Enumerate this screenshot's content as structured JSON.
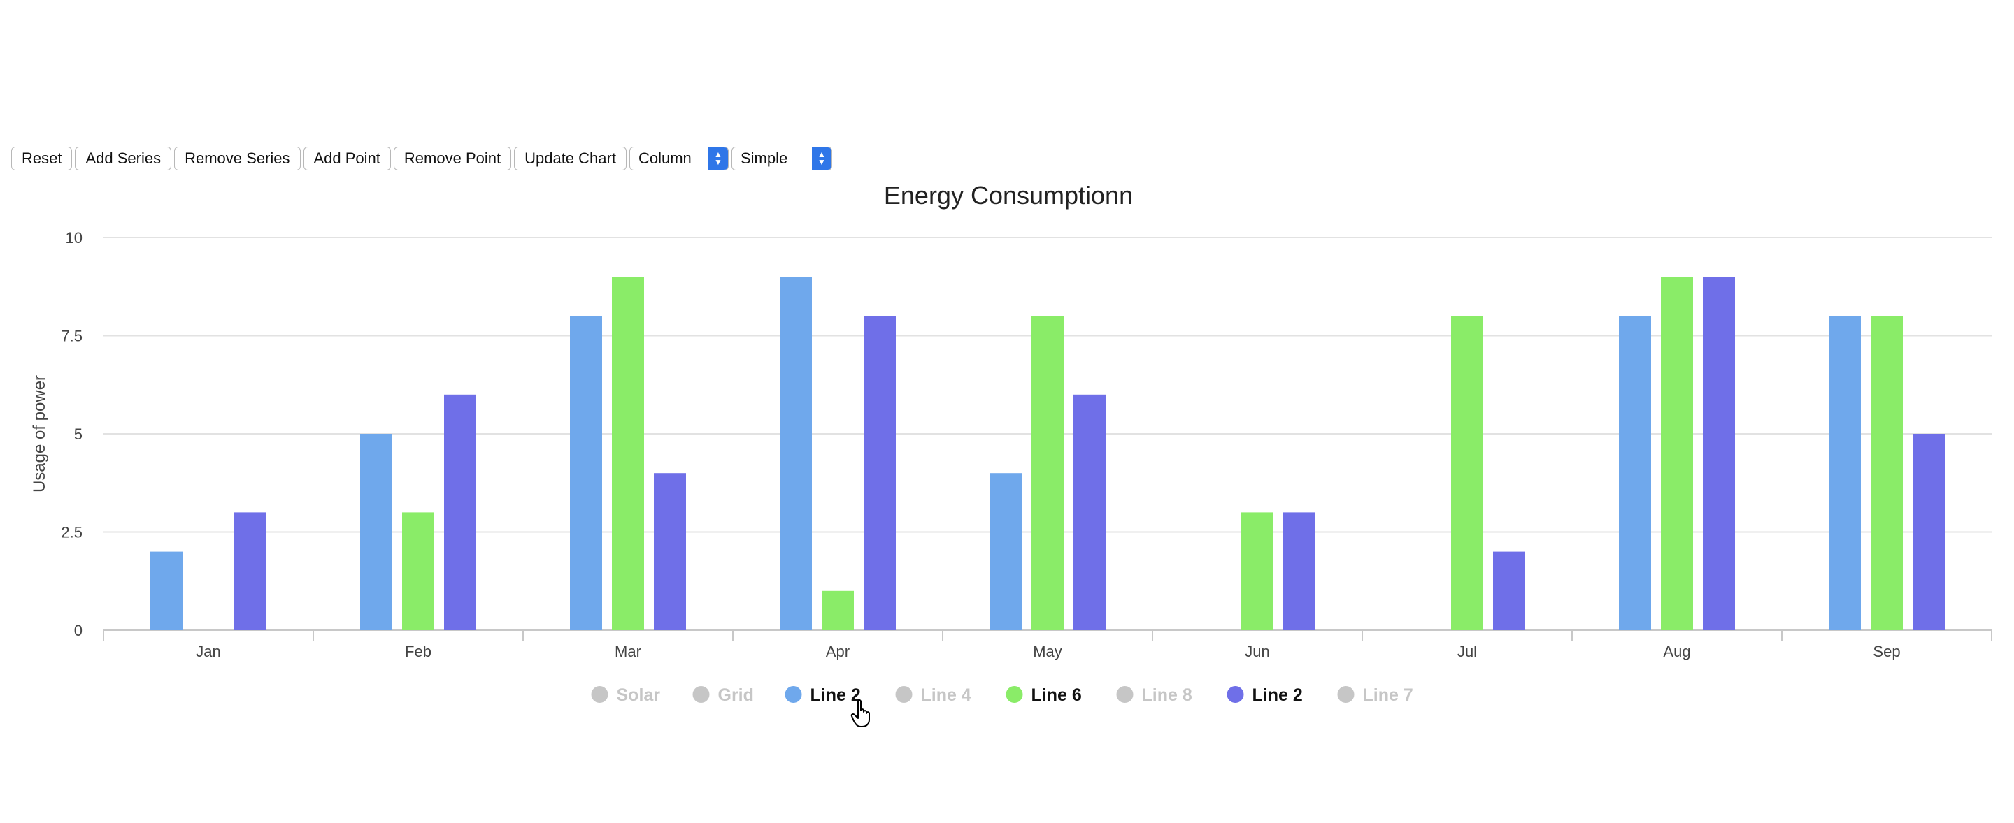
{
  "toolbar": {
    "buttons": [
      "Reset",
      "Add Series",
      "Remove Series",
      "Add Point",
      "Remove Point",
      "Update Chart"
    ],
    "chart_type_select": "Column",
    "theme_select": "Simple",
    "select_accent": "#2f76e8"
  },
  "chart_data": {
    "type": "bar",
    "title": "Energy Consumptionn",
    "xlabel": "",
    "ylabel": "Usage of power",
    "ylim": [
      0,
      10
    ],
    "yticks": [
      "0",
      "2.5",
      "5",
      "7.5",
      "10"
    ],
    "grid": true,
    "legend_position": "bottom-center",
    "categories": [
      "Jan",
      "Feb",
      "Mar",
      "Apr",
      "May",
      "Jun",
      "Jul",
      "Aug",
      "Sep"
    ],
    "series": [
      {
        "name": "Line 2",
        "color": "#6fa8ec",
        "visible": true,
        "values": [
          2,
          5,
          8,
          9,
          4,
          0,
          0,
          8,
          8
        ]
      },
      {
        "name": "Line 6",
        "color": "#8aec68",
        "visible": true,
        "values": [
          0,
          3,
          9,
          1,
          8,
          3,
          8,
          9,
          8
        ]
      },
      {
        "name": "Line 2",
        "color": "#6f6fe8",
        "visible": true,
        "values": [
          3,
          6,
          4,
          8,
          6,
          3,
          2,
          9,
          5
        ]
      }
    ],
    "legend": [
      {
        "name": "Solar",
        "color": "#c6c6c6",
        "active": false
      },
      {
        "name": "Grid",
        "color": "#c6c6c6",
        "active": false
      },
      {
        "name": "Line 2",
        "color": "#6fa8ec",
        "active": true
      },
      {
        "name": "Line 4",
        "color": "#c6c6c6",
        "active": false
      },
      {
        "name": "Line 6",
        "color": "#8aec68",
        "active": true
      },
      {
        "name": "Line 8",
        "color": "#c6c6c6",
        "active": false
      },
      {
        "name": "Line 2",
        "color": "#6f6fe8",
        "active": true
      },
      {
        "name": "Line 7",
        "color": "#c6c6c6",
        "active": false
      }
    ]
  }
}
